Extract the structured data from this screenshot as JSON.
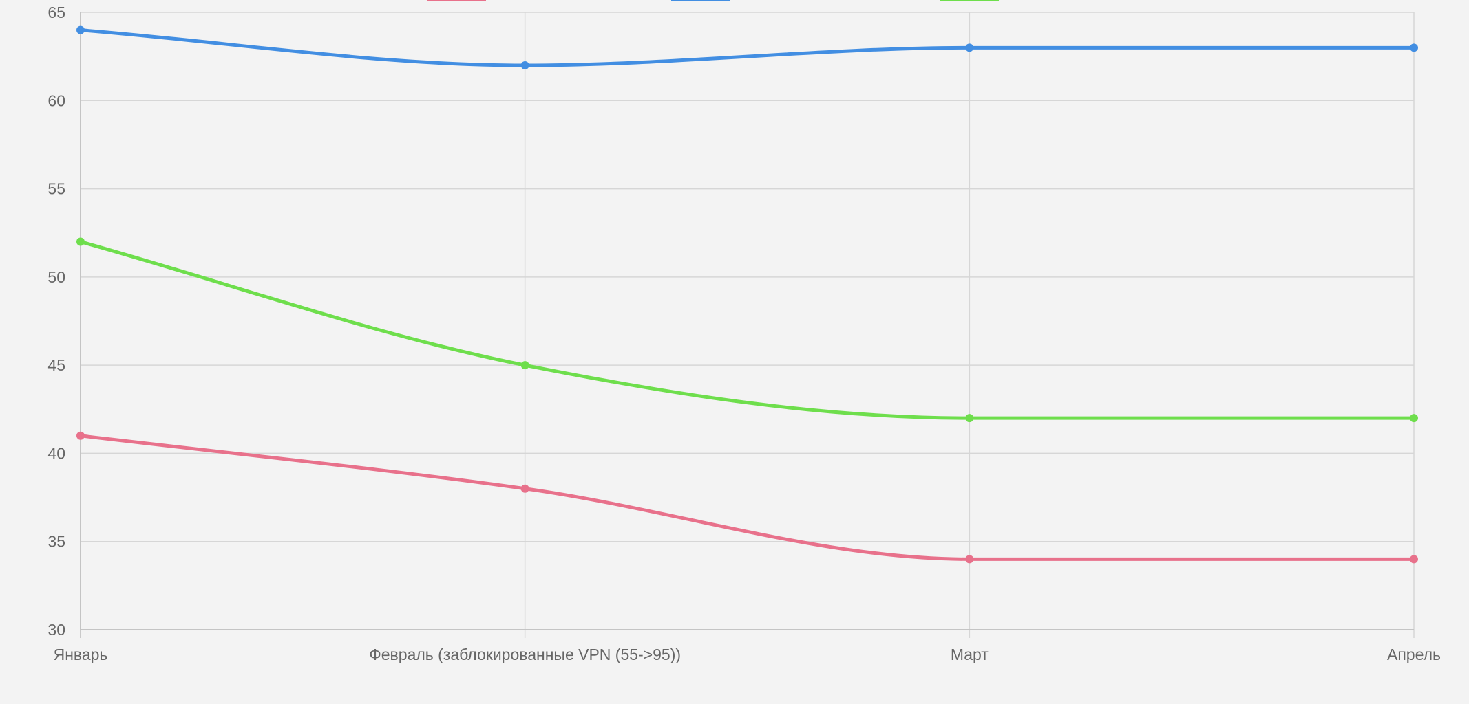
{
  "chart_data": {
    "type": "line",
    "categories": [
      "Январь",
      "Февраль (заблокированные VPN (55->95))",
      "Март",
      "Апрель"
    ],
    "ylim": [
      30,
      65
    ],
    "yticks": [
      "30",
      "35",
      "40",
      "45",
      "50",
      "55",
      "60",
      "65"
    ],
    "grid": true,
    "legend_position": "top-center",
    "series": [
      {
        "values": [
          41,
          38,
          34,
          34
        ],
        "color": "#e8718b"
      },
      {
        "values": [
          64,
          62,
          63,
          63
        ],
        "color": "#428ee2"
      },
      {
        "values": [
          52,
          45,
          42,
          42
        ],
        "color": "#6ede4c"
      }
    ]
  }
}
